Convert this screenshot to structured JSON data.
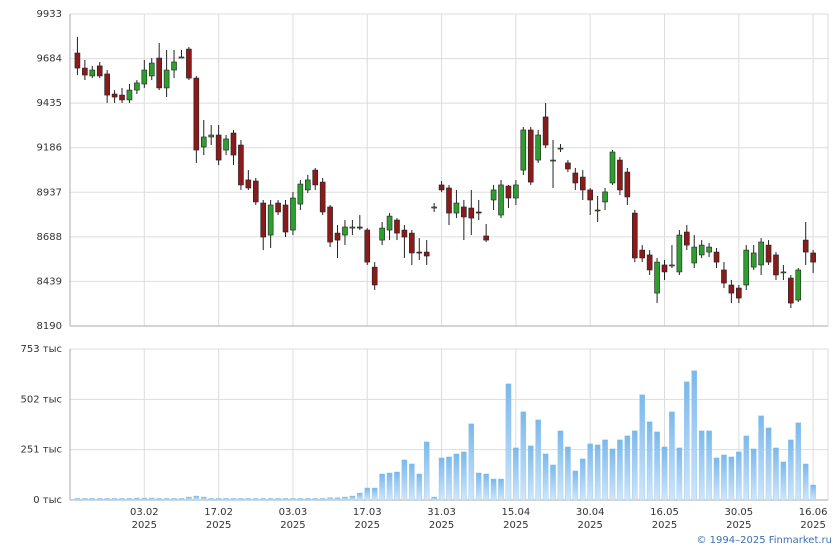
{
  "chart_data": [
    {
      "type": "candlestick",
      "open": [
        9715,
        9631,
        9587,
        9643,
        9598,
        9486,
        9480,
        9453,
        9508,
        9542,
        9587,
        9687,
        9520,
        9620,
        9687,
        9737,
        9575,
        9190,
        9246,
        9257,
        9173,
        9268,
        9201,
        9006,
        9000,
        8877,
        8698,
        8877,
        8866,
        8726,
        8871,
        8950,
        9061,
        8994,
        8855,
        8709,
        8698,
        8737,
        8743,
        8726,
        8519,
        8670,
        8726,
        8782,
        8726,
        8709,
        8603,
        8603,
        8849,
        8978,
        8961,
        8821,
        8855,
        8849,
        8827,
        8693,
        8894,
        8810,
        8972,
        8905,
        9061,
        9285,
        9117,
        9358,
        9117,
        9184,
        9101,
        9045,
        9022,
        8950,
        8838,
        8883,
        8989,
        9117,
        9050,
        8821,
        8614,
        8587,
        8374,
        8531,
        8531,
        8492,
        8715,
        8542,
        8587,
        8603,
        8603,
        8503,
        8419,
        8402,
        8419,
        8519,
        8531,
        8642,
        8587,
        8492,
        8458,
        8335,
        8670,
        8598
      ],
      "high": [
        9805,
        9676,
        9643,
        9665,
        9620,
        9508,
        9520,
        9542,
        9564,
        9676,
        9687,
        9771,
        9732,
        9732,
        9732,
        9749,
        9587,
        9341,
        9313,
        9313,
        9257,
        9285,
        9229,
        9061,
        9017,
        8894,
        8894,
        8894,
        8894,
        8939,
        9006,
        9034,
        9073,
        9017,
        8866,
        8754,
        8782,
        8782,
        8810,
        8737,
        8547,
        8771,
        8821,
        8793,
        8754,
        8726,
        8681,
        8670,
        8877,
        9000,
        8978,
        8950,
        8894,
        8950,
        8894,
        8760,
        8978,
        9006,
        8978,
        9006,
        9302,
        9302,
        9285,
        9436,
        9229,
        9207,
        9117,
        9073,
        9061,
        8961,
        8916,
        8961,
        9173,
        9134,
        9073,
        8838,
        8642,
        8614,
        8570,
        8559,
        8642,
        8726,
        8754,
        8698,
        8670,
        8654,
        8626,
        8547,
        8447,
        8419,
        8642,
        8642,
        8681,
        8670,
        8603,
        8531,
        8475,
        8514,
        8771,
        8614
      ],
      "low": [
        9592,
        9564,
        9575,
        9575,
        9436,
        9436,
        9436,
        9436,
        9486,
        9520,
        9564,
        9508,
        9469,
        9575,
        9687,
        9564,
        9101,
        9145,
        9201,
        9089,
        9145,
        9089,
        8950,
        8950,
        8866,
        8614,
        8626,
        8810,
        8687,
        8698,
        8838,
        8933,
        8950,
        8810,
        8631,
        8570,
        8642,
        8698,
        8726,
        8531,
        8391,
        8642,
        8670,
        8670,
        8570,
        8531,
        8559,
        8531,
        8827,
        8939,
        8754,
        8793,
        8670,
        8698,
        8782,
        8659,
        8838,
        8793,
        8849,
        8866,
        9034,
        8978,
        9101,
        9184,
        8961,
        9162,
        9050,
        8950,
        8894,
        8810,
        8771,
        8838,
        8978,
        8922,
        8866,
        8547,
        8547,
        8475,
        8318,
        8447,
        8514,
        8475,
        8614,
        8514,
        8570,
        8575,
        8514,
        8402,
        8318,
        8318,
        8391,
        8503,
        8475,
        8531,
        8447,
        8447,
        8290,
        8324,
        8531,
        8486
      ],
      "close": [
        9631,
        9592,
        9620,
        9587,
        9480,
        9469,
        9453,
        9508,
        9548,
        9620,
        9659,
        9520,
        9620,
        9665,
        9693,
        9575,
        9173,
        9246,
        9257,
        9117,
        9235,
        9145,
        8978,
        8961,
        8883,
        8687,
        8866,
        8827,
        8715,
        8905,
        8983,
        9006,
        8978,
        8827,
        8659,
        8670,
        8743,
        8743,
        8737,
        8547,
        8419,
        8737,
        8804,
        8709,
        8687,
        8598,
        8598,
        8581,
        8855,
        8950,
        8821,
        8877,
        8799,
        8793,
        8821,
        8670,
        8950,
        8978,
        8905,
        8978,
        9285,
        8994,
        9257,
        9201,
        9117,
        9184,
        9067,
        8989,
        8950,
        8894,
        8838,
        8939,
        9162,
        8950,
        8911,
        8570,
        8570,
        8503,
        8547,
        8492,
        8531,
        8698,
        8642,
        8631,
        8642,
        8631,
        8547,
        8430,
        8374,
        8346,
        8614,
        8598,
        8659,
        8547,
        8475,
        8492,
        8318,
        8503,
        8603,
        8547
      ],
      "up_color": "#2e9e2e",
      "down_color": "#8b1a1a",
      "xlim": [
        -1,
        101
      ],
      "xticks": [
        9,
        19,
        29,
        39,
        49,
        59,
        69,
        79,
        89,
        99
      ],
      "ylim": [
        8190,
        9933
      ],
      "yticks": [
        8190,
        8439,
        8688,
        8937,
        9186,
        9435,
        9684,
        9933
      ],
      "grid": true
    },
    {
      "type": "bar",
      "values": [
        8,
        8,
        8,
        8,
        8,
        8,
        8,
        8,
        10,
        10,
        10,
        8,
        8,
        8,
        8,
        15,
        20,
        15,
        8,
        8,
        8,
        8,
        8,
        8,
        8,
        8,
        8,
        8,
        8,
        8,
        8,
        8,
        8,
        8,
        12,
        12,
        15,
        20,
        35,
        60,
        60,
        130,
        135,
        140,
        200,
        180,
        130,
        290,
        15,
        210,
        215,
        230,
        240,
        380,
        135,
        130,
        105,
        105,
        580,
        260,
        440,
        270,
        400,
        230,
        175,
        345,
        265,
        145,
        205,
        280,
        275,
        300,
        255,
        300,
        320,
        345,
        525,
        390,
        340,
        265,
        440,
        260,
        590,
        645,
        345,
        345,
        210,
        225,
        215,
        240,
        320,
        255,
        420,
        360,
        260,
        190,
        300,
        385,
        180,
        75
      ],
      "color": "#86c0ee",
      "xlim": [
        -1,
        101
      ],
      "xticks": [
        {
          "value": 9,
          "label": "03.02\n2025"
        },
        {
          "value": 19,
          "label": "17.02\n2025"
        },
        {
          "value": 29,
          "label": "03.03\n2025"
        },
        {
          "value": 39,
          "label": "17.03\n2025"
        },
        {
          "value": 49,
          "label": "31.03\n2025"
        },
        {
          "value": 59,
          "label": "15.04\n2025"
        },
        {
          "value": 69,
          "label": "30.04\n2025"
        },
        {
          "value": 79,
          "label": "16.05\n2025"
        },
        {
          "value": 89,
          "label": "30.05\n2025"
        },
        {
          "value": 99,
          "label": "16.06\n2025"
        }
      ],
      "ylim": [
        0,
        753
      ],
      "yticks": [
        {
          "value": 0,
          "label": "0 тыс"
        },
        {
          "value": 251,
          "label": "251 тыс"
        },
        {
          "value": 502,
          "label": "502 тыс"
        },
        {
          "value": 753,
          "label": "753 тыс"
        }
      ],
      "grid": true
    }
  ],
  "footer": "© 1994–2025 Finmarket.ru"
}
